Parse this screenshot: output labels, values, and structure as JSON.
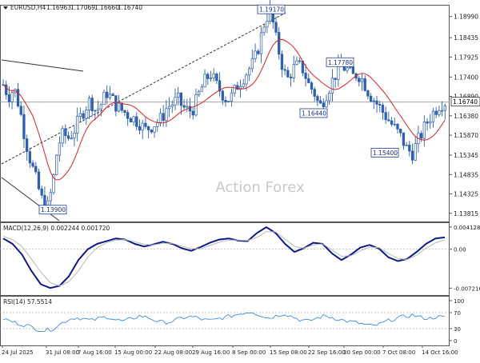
{
  "header": {
    "symbol": "EURUSD,H4",
    "open": "1.16963",
    "high": "1.17069",
    "low": "1.16660",
    "close": "1.16740"
  },
  "watermark": "Action Forex",
  "chart_data": [
    {
      "type": "candlestick",
      "title": "EURUSD,H4",
      "ylim": [
        1.136,
        1.193
      ],
      "y_ticks": [
        "1.18990",
        "1.18435",
        "1.17925",
        "1.17400",
        "1.16890",
        "1.16380",
        "1.15870",
        "1.15345",
        "1.14835",
        "1.14325",
        "1.13815"
      ],
      "current_price": "1.16740",
      "overlay": "moving average (red)",
      "price_labels": [
        {
          "label": "1.19170",
          "value": 1.1917
        },
        {
          "label": "1.17780",
          "value": 1.1778
        },
        {
          "label": "1.16440",
          "value": 1.1644
        },
        {
          "label": "1.15400",
          "value": 1.154
        },
        {
          "label": "1.13900",
          "value": 1.139
        }
      ],
      "close_path": [
        1.172,
        1.169,
        1.171,
        1.166,
        1.158,
        1.152,
        1.147,
        1.142,
        1.139,
        1.145,
        1.156,
        1.159,
        1.158,
        1.16,
        1.163,
        1.166,
        1.168,
        1.165,
        1.167,
        1.17,
        1.168,
        1.166,
        1.165,
        1.164,
        1.163,
        1.162,
        1.16,
        1.161,
        1.162,
        1.163,
        1.166,
        1.167,
        1.168,
        1.166,
        1.165,
        1.166,
        1.17,
        1.173,
        1.175,
        1.172,
        1.17,
        1.168,
        1.169,
        1.172,
        1.174,
        1.176,
        1.178,
        1.183,
        1.189,
        1.1917,
        1.184,
        1.178,
        1.173,
        1.176,
        1.177,
        1.176,
        1.172,
        1.17,
        1.166,
        1.169,
        1.172,
        1.175,
        1.177,
        1.176,
        1.174,
        1.175,
        1.173,
        1.17,
        1.168,
        1.166,
        1.164,
        1.162,
        1.16,
        1.158,
        1.155,
        1.154,
        1.157,
        1.16,
        1.163,
        1.165,
        1.167,
        1.1674
      ]
    },
    {
      "type": "line",
      "title": "MACD(12,26,9)",
      "values_label": "0.002244 0.001720",
      "ylim": [
        -0.0085,
        0.005
      ],
      "y_ticks": [
        "0.004128",
        "0.00",
        "-0.007216"
      ],
      "series": [
        {
          "name": "MACD",
          "values": [
            0.002,
            0.001,
            -0.001,
            -0.004,
            -0.0065,
            -0.0072,
            -0.0068,
            -0.005,
            -0.002,
            0.0,
            0.001,
            0.0015,
            0.002,
            0.0018,
            0.001,
            0.0005,
            0.0009,
            0.0014,
            0.001,
            0.0002,
            -0.0003,
            0.0004,
            0.0012,
            0.0018,
            0.002,
            0.0016,
            0.0015,
            0.003,
            0.0041,
            0.003,
            0.001,
            -0.0005,
            0.0002,
            0.0012,
            0.001,
            -0.0008,
            -0.002,
            -0.001,
            0.0003,
            0.0008,
            0.0001,
            -0.0015,
            -0.0022,
            -0.0018,
            -0.0005,
            0.001,
            0.002,
            0.0022
          ]
        },
        {
          "name": "Signal",
          "values": [
            0.0024,
            0.0018,
            0.0005,
            -0.0018,
            -0.0042,
            -0.0062,
            -0.0068,
            -0.006,
            -0.004,
            -0.0015,
            0.0003,
            0.0012,
            0.0017,
            0.0018,
            0.0014,
            0.0009,
            0.0008,
            0.0011,
            0.0011,
            0.0006,
            0.0001,
            0.0001,
            0.0007,
            0.0013,
            0.0017,
            0.0017,
            0.0016,
            0.0022,
            0.0033,
            0.0032,
            0.0019,
            0.0005,
            0.0002,
            0.0008,
            0.001,
            -0.0001,
            -0.0013,
            -0.0012,
            -0.0003,
            0.0004,
            0.0003,
            -0.0008,
            -0.0017,
            -0.0019,
            -0.0011,
            0.0002,
            0.0012,
            0.0017
          ]
        }
      ]
    },
    {
      "type": "line",
      "title": "RSI(14)",
      "values_label": "57.5514",
      "ylim": [
        0,
        100
      ],
      "y_ticks": [
        "100",
        "70",
        "30",
        "0"
      ],
      "series": [
        {
          "name": "RSI",
          "values": [
            55,
            48,
            42,
            38,
            30,
            25,
            28,
            40,
            52,
            58,
            55,
            50,
            56,
            60,
            52,
            48,
            55,
            62,
            58,
            50,
            45,
            48,
            55,
            60,
            58,
            52,
            50,
            56,
            60,
            65,
            70,
            72,
            64,
            56,
            62,
            68,
            60,
            52,
            48,
            56,
            62,
            58,
            52,
            48,
            45,
            40,
            36,
            42,
            50,
            56,
            60,
            64,
            58,
            55,
            60,
            57.5
          ]
        }
      ]
    }
  ],
  "x_axis": {
    "labels": [
      "24 Jul 2025",
      "31 Jul 08:00",
      "7 Aug 16:00",
      "15 Aug 00:00",
      "22 Aug 08:00",
      "29 Aug 16:00",
      "8 Sep 00:00",
      "15 Sep 08:00",
      "22 Sep 16:00",
      "30 Sep 00:00",
      "7 Oct 08:00",
      "14 Oct 16:00"
    ]
  },
  "colors": {
    "candle_up": "#2e5fae",
    "candle_down": "#2e5fae",
    "ma_line": "#e0201b",
    "macd_line": "#0c1a8c",
    "signal_line": "#b8b8b8",
    "rsi_line": "#3a8ee6",
    "label_border": "#1d3fa0",
    "watermark": "#c8c8c8",
    "grid": "#e8e8e8"
  }
}
